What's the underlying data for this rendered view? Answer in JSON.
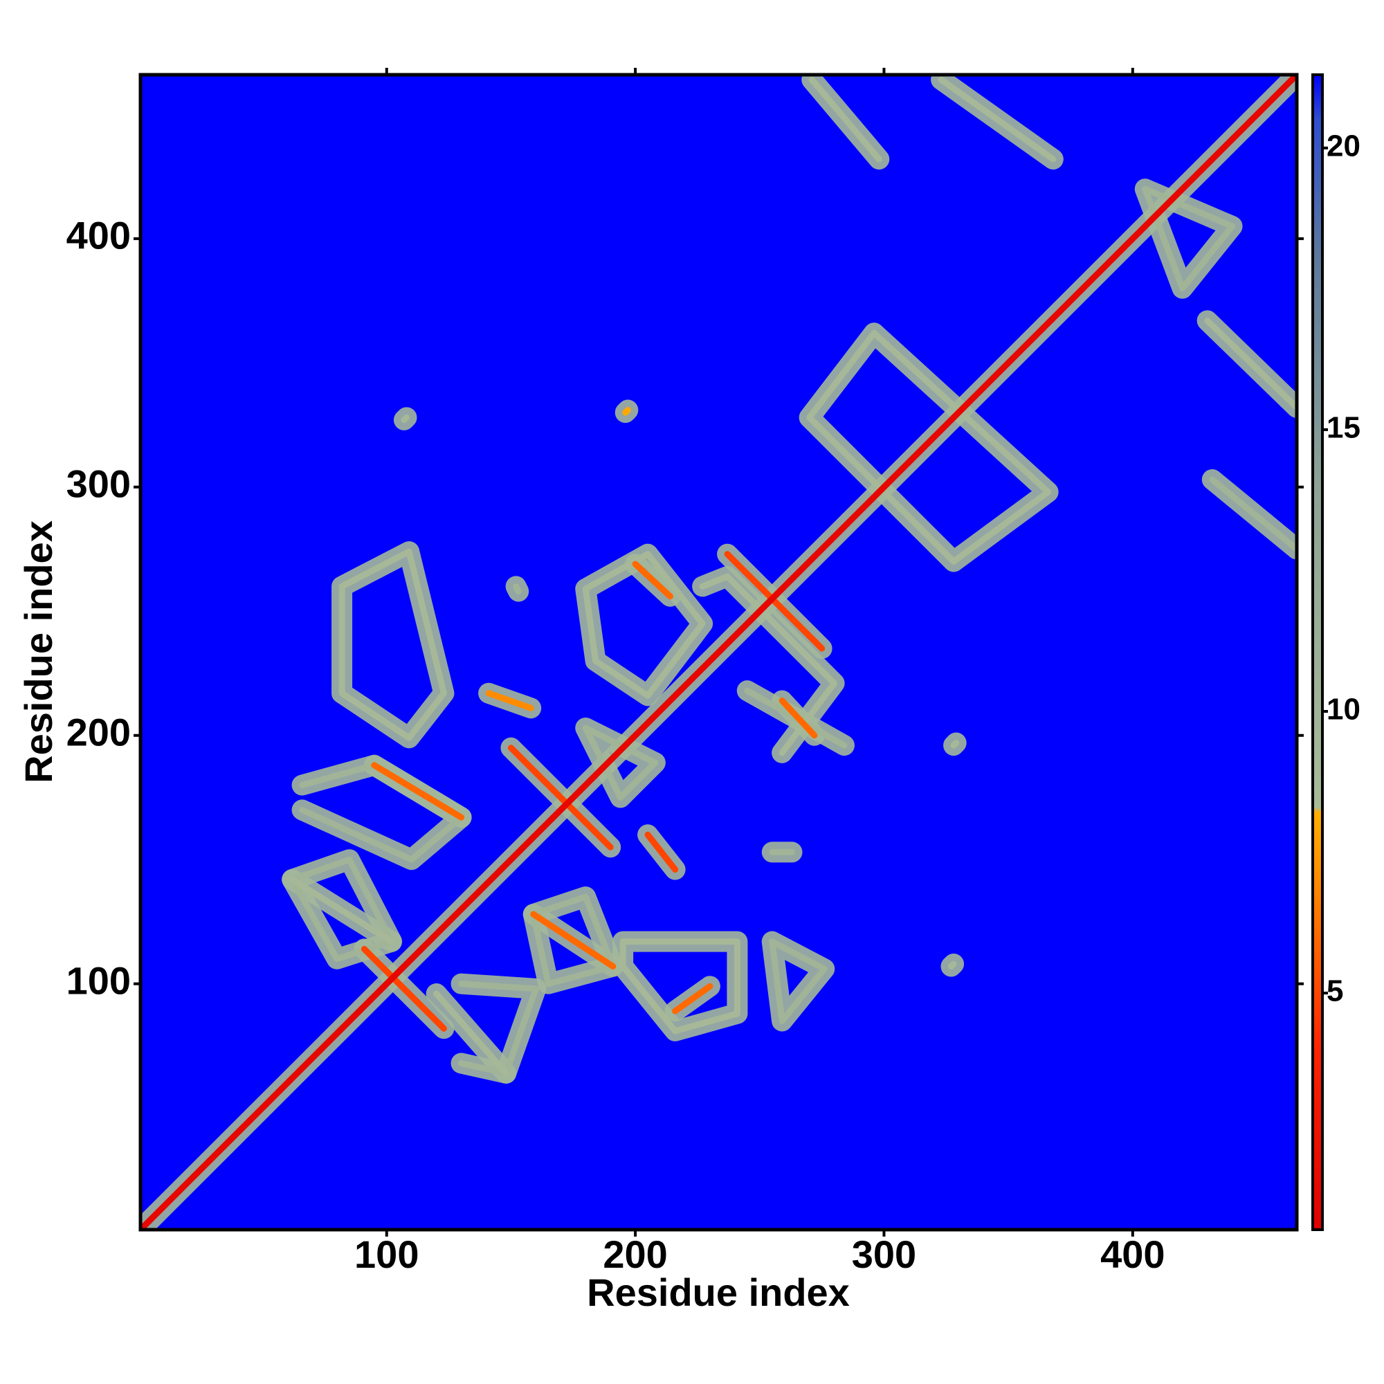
{
  "chart_data": {
    "type": "heatmap",
    "x_label": "Residue index",
    "y_label": "Residue index",
    "xlim": [
      1,
      466
    ],
    "ylim": [
      1,
      466
    ],
    "xticks": [
      100,
      200,
      300,
      400
    ],
    "yticks": [
      100,
      200,
      300,
      400
    ],
    "zlim": [
      0.8,
      21.3
    ],
    "zticks": [
      5,
      10,
      15,
      20
    ],
    "colorscale": [
      [
        0.8,
        "#e00000"
      ],
      [
        4,
        "#ff2200"
      ],
      [
        7,
        "#ff8c00"
      ],
      [
        8.2,
        "#ffae00"
      ],
      [
        8.3,
        "#a9bb98"
      ],
      [
        14,
        "#8ea396"
      ],
      [
        18,
        "#5d7a9c"
      ],
      [
        20.5,
        "#2f4fcf"
      ],
      [
        21.3,
        "#0000ff"
      ]
    ],
    "halo_color": "#a3b89a",
    "contacts": [
      {
        "x": [
          1,
          466
        ],
        "y": [
          1,
          466
        ],
        "value": 1.5
      },
      {
        "x": [
          91,
          123
        ],
        "y": [
          114,
          82
        ],
        "value": 5
      },
      {
        "x": [
          150,
          190
        ],
        "y": [
          195,
          155
        ],
        "value": 5
      },
      {
        "x": [
          237,
          275
        ],
        "y": [
          273,
          235
        ],
        "value": 5
      },
      {
        "x": [
          200,
          214
        ],
        "y": [
          269,
          256
        ],
        "value": 6
      },
      {
        "x": [
          259,
          272
        ],
        "y": [
          214,
          200
        ],
        "value": 6
      },
      {
        "x": [
          270,
          296,
          366,
          328,
          270
        ],
        "y": [
          328,
          362,
          298,
          270,
          328
        ],
        "value": 9
      },
      {
        "x": [
          271,
          298
        ],
        "y": [
          464,
          432
        ],
        "value": 9
      },
      {
        "x": [
          323,
          368
        ],
        "y": [
          464,
          432
        ],
        "value": 9
      },
      {
        "x": [
          430,
          466
        ],
        "y": [
          367,
          332
        ],
        "value": 9
      },
      {
        "x": [
          432,
          466
        ],
        "y": [
          303,
          275
        ],
        "value": 10
      },
      {
        "x": [
          107,
          108
        ],
        "y": [
          327,
          328
        ],
        "value": 9
      },
      {
        "x": [
          196,
          197
        ],
        "y": [
          330,
          331
        ],
        "value": 8
      },
      {
        "x": [
          328,
          329
        ],
        "y": [
          196,
          197
        ],
        "value": 9
      },
      {
        "x": [
          327,
          328
        ],
        "y": [
          107,
          108
        ],
        "value": 9
      },
      {
        "x": [
          152,
          153
        ],
        "y": [
          260,
          258
        ],
        "value": 10
      },
      {
        "x": [
          255,
          263
        ],
        "y": [
          153,
          153
        ],
        "value": 10
      },
      {
        "x": [
          82,
          109,
          123,
          109,
          82,
          82
        ],
        "y": [
          260,
          274,
          217,
          199,
          217,
          260
        ],
        "value": 9
      },
      {
        "x": [
          95,
          130
        ],
        "y": [
          188,
          167
        ],
        "value": 6
      },
      {
        "x": [
          66,
          95,
          130,
          110,
          66
        ],
        "y": [
          180,
          188,
          167,
          150,
          170
        ],
        "value": 10
      },
      {
        "x": [
          62,
          102
        ],
        "y": [
          142,
          117
        ],
        "value": 9
      },
      {
        "x": [
          62,
          85,
          102,
          80,
          62
        ],
        "y": [
          142,
          150,
          117,
          110,
          142
        ],
        "value": 10
      },
      {
        "x": [
          159,
          191
        ],
        "y": [
          128,
          107
        ],
        "value": 6
      },
      {
        "x": [
          159,
          180,
          191,
          165,
          159
        ],
        "y": [
          128,
          135,
          107,
          100,
          128
        ],
        "value": 10
      },
      {
        "x": [
          120,
          148
        ],
        "y": [
          96,
          64
        ],
        "value": 9
      },
      {
        "x": [
          130,
          160,
          148,
          130
        ],
        "y": [
          100,
          98,
          64,
          68
        ],
        "value": 10
      },
      {
        "x": [
          195,
          241,
          241,
          216,
          195,
          195
        ],
        "y": [
          117,
          117,
          88,
          81,
          107,
          117
        ],
        "value": 9
      },
      {
        "x": [
          216,
          230
        ],
        "y": [
          89,
          99
        ],
        "value": 6
      },
      {
        "x": [
          255,
          276,
          259,
          255
        ],
        "y": [
          117,
          106,
          85,
          117
        ],
        "value": 10
      },
      {
        "x": [
          180,
          205,
          227,
          205,
          184,
          180
        ],
        "y": [
          259,
          273,
          245,
          216,
          230,
          259
        ],
        "value": 9
      },
      {
        "x": [
          227,
          237,
          280,
          259
        ],
        "y": [
          260,
          264,
          221,
          193
        ],
        "value": 9
      },
      {
        "x": [
          141,
          158
        ],
        "y": [
          217,
          211
        ],
        "value": 7
      },
      {
        "x": [
          180,
          208,
          194,
          180
        ],
        "y": [
          203,
          189,
          175,
          203
        ],
        "value": 10
      },
      {
        "x": [
          205,
          216
        ],
        "y": [
          160,
          146
        ],
        "value": 5
      },
      {
        "x": [
          245,
          284
        ],
        "y": [
          218,
          196
        ],
        "value": 10
      },
      {
        "x": [
          405,
          440,
          420,
          405
        ],
        "y": [
          420,
          405,
          380,
          420
        ],
        "value": 10
      }
    ]
  }
}
